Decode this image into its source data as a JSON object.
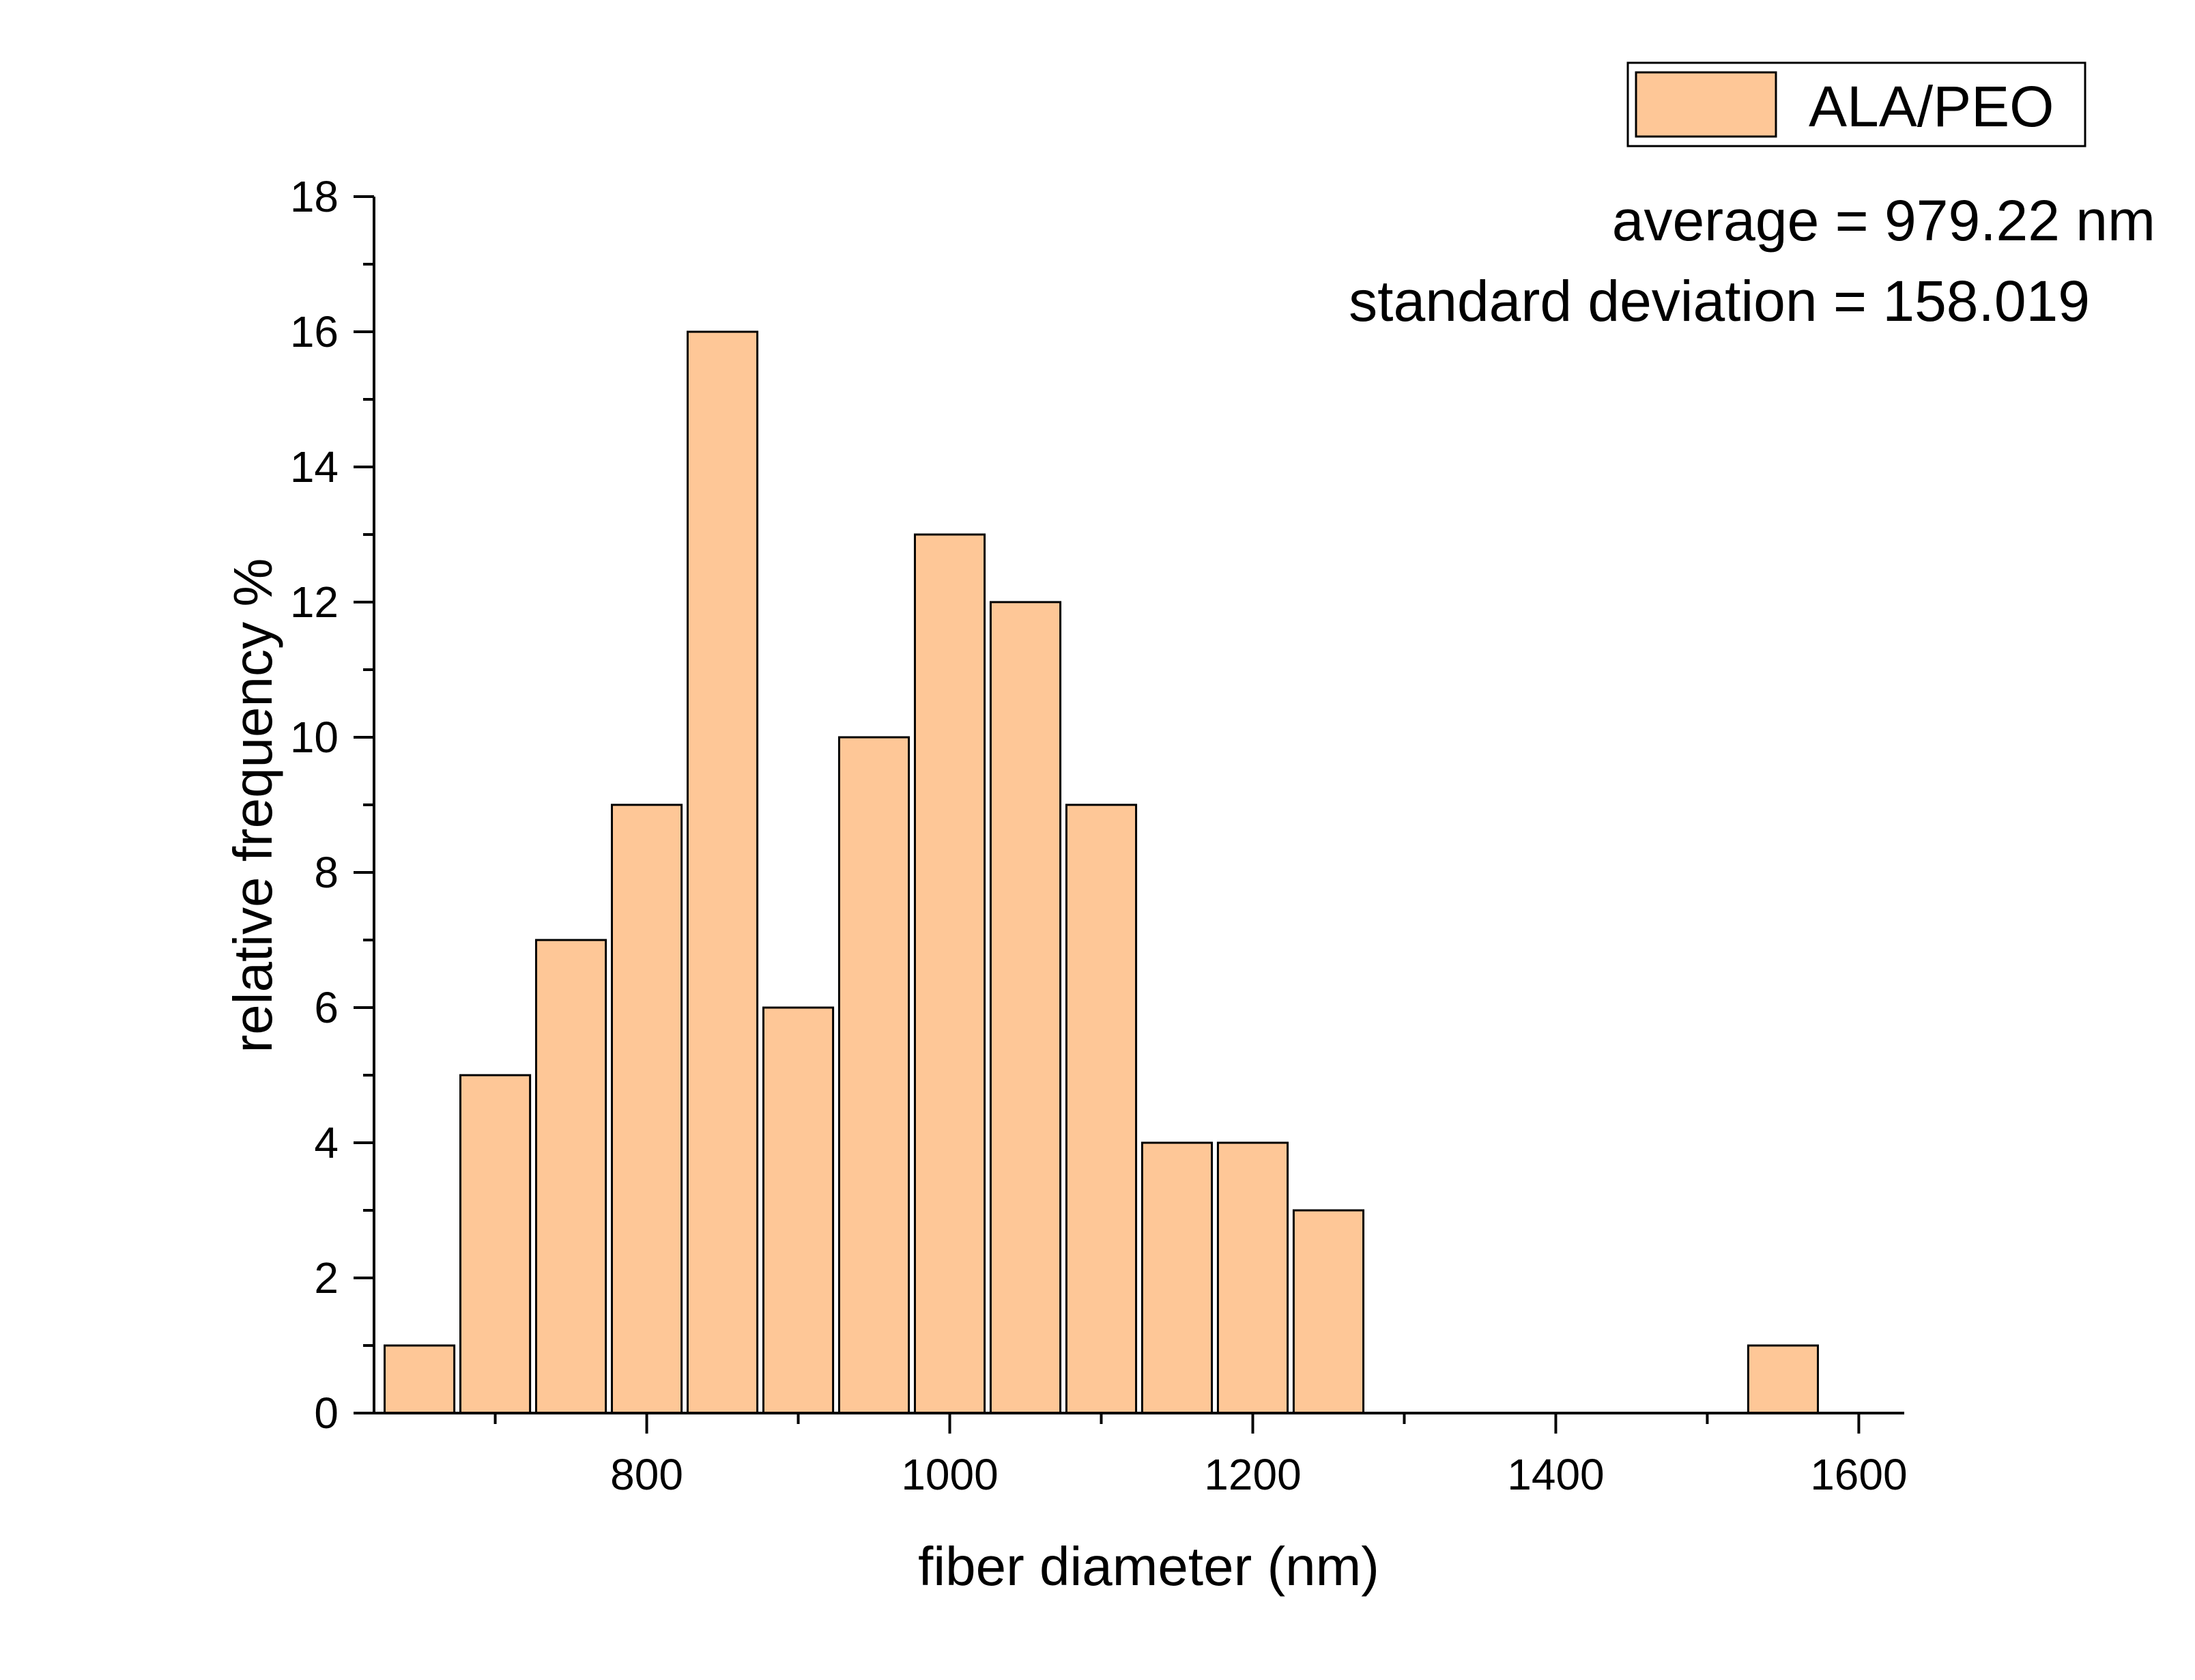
{
  "chart_data": {
    "type": "bar",
    "title": "",
    "xlabel": "fiber diameter (nm)",
    "ylabel": "relative frequency %",
    "xlim": [
      620,
      1630
    ],
    "ylim": [
      0,
      18
    ],
    "xticks": [
      800,
      1000,
      1200,
      1400,
      1600
    ],
    "yticks": [
      0,
      2,
      4,
      6,
      8,
      10,
      12,
      14,
      16,
      18
    ],
    "bin_width": 50,
    "series": [
      {
        "name": "ALA/PEO",
        "color": "#FEC797",
        "bins": [
          {
            "x": 650,
            "value": 1
          },
          {
            "x": 700,
            "value": 5
          },
          {
            "x": 750,
            "value": 7
          },
          {
            "x": 800,
            "value": 9
          },
          {
            "x": 850,
            "value": 16
          },
          {
            "x": 900,
            "value": 6
          },
          {
            "x": 950,
            "value": 10
          },
          {
            "x": 1000,
            "value": 13
          },
          {
            "x": 1050,
            "value": 12
          },
          {
            "x": 1100,
            "value": 9
          },
          {
            "x": 1150,
            "value": 4
          },
          {
            "x": 1200,
            "value": 4
          },
          {
            "x": 1250,
            "value": 3
          },
          {
            "x": 1300,
            "value": 0
          },
          {
            "x": 1350,
            "value": 0
          },
          {
            "x": 1400,
            "value": 0
          },
          {
            "x": 1450,
            "value": 0
          },
          {
            "x": 1500,
            "value": 0
          },
          {
            "x": 1550,
            "value": 1
          }
        ]
      }
    ],
    "legend": {
      "position": "top-right",
      "entries": [
        "ALA/PEO"
      ]
    },
    "annotations": [
      "average = 979.22 nm",
      "standard deviation = 158.019"
    ],
    "grid": false
  }
}
